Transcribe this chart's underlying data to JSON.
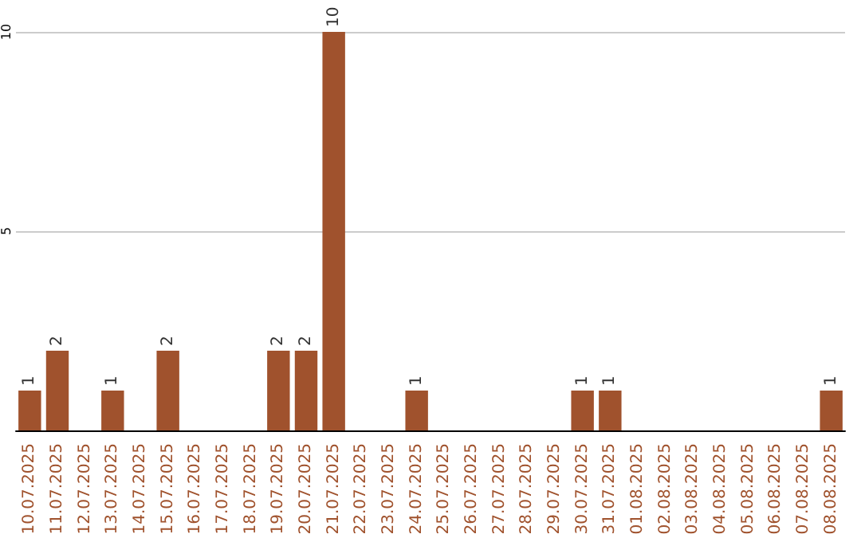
{
  "chart_data": {
    "type": "bar",
    "categories": [
      "10.07.2025",
      "11.07.2025",
      "12.07.2025",
      "13.07.2025",
      "14.07.2025",
      "15.07.2025",
      "16.07.2025",
      "17.07.2025",
      "18.07.2025",
      "19.07.2025",
      "20.07.2025",
      "21.07.2025",
      "22.07.2025",
      "23.07.2025",
      "24.07.2025",
      "25.07.2025",
      "26.07.2025",
      "27.07.2025",
      "28.07.2025",
      "29.07.2025",
      "30.07.2025",
      "31.07.2025",
      "01.08.2025",
      "02.08.2025",
      "03.08.2025",
      "04.08.2025",
      "05.08.2025",
      "06.08.2025",
      "07.08.2025",
      "08.08.2025"
    ],
    "values": [
      1,
      2,
      0,
      1,
      0,
      2,
      0,
      0,
      0,
      2,
      2,
      10,
      0,
      0,
      1,
      0,
      0,
      0,
      0,
      0,
      1,
      1,
      0,
      0,
      0,
      0,
      0,
      0,
      0,
      1
    ],
    "value_labels": [
      "1",
      "2",
      null,
      "1",
      null,
      "2",
      null,
      null,
      null,
      "2",
      "2",
      "10",
      null,
      null,
      "1",
      null,
      null,
      null,
      null,
      null,
      "1",
      "1",
      null,
      null,
      null,
      null,
      null,
      null,
      null,
      "1"
    ],
    "color": "#a0522d",
    "ylim": [
      0,
      10
    ],
    "yticks": [
      {
        "value": 0,
        "label": null
      },
      5,
      10
    ],
    "grid": "y"
  }
}
